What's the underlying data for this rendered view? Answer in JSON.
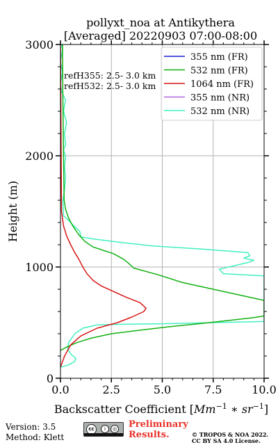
{
  "chart_data": {
    "type": "line",
    "title": [
      "pollyxt_noa at Antikythera",
      "[Averaged] 20220903 07:00-08:00"
    ],
    "xlabel": "Backscatter Coefficient [Mm⁻¹ * sr⁻¹]",
    "ylabel": "Height (m)",
    "xlim": [
      0,
      10
    ],
    "ylim": [
      0,
      3000
    ],
    "xticks": [
      0,
      2.5,
      5,
      7.5,
      10
    ],
    "xtick_labels": [
      "0.0",
      "2.5",
      "5.0",
      "7.5",
      "10.0"
    ],
    "yticks": [
      0,
      1000,
      2000,
      3000
    ],
    "ytick_labels": [
      "0",
      "1000",
      "2000",
      "3000"
    ],
    "grid": true,
    "legend_position": "top-right",
    "annotations": [
      "refH355:  2.5- 3.0 km",
      "refH532:  2.5- 3.0 km"
    ],
    "series": [
      {
        "name": "355 nm (FR)",
        "color": "#1a1ad8",
        "points": []
      },
      {
        "name": "532 nm (FR)",
        "color": "#12b012",
        "points": [
          [
            0.0,
            250
          ],
          [
            0.3,
            280
          ],
          [
            0.8,
            320
          ],
          [
            1.5,
            360
          ],
          [
            2.5,
            400
          ],
          [
            3.8,
            430
          ],
          [
            5.2,
            460
          ],
          [
            6.8,
            490
          ],
          [
            8.3,
            520
          ],
          [
            9.5,
            545
          ],
          [
            10.0,
            560
          ],
          [
            10.0,
            700
          ],
          [
            9.0,
            740
          ],
          [
            7.5,
            800
          ],
          [
            6.0,
            860
          ],
          [
            4.8,
            930
          ],
          [
            3.6,
            990
          ],
          [
            3.3,
            1040
          ],
          [
            3.1,
            1070
          ],
          [
            2.6,
            1120
          ],
          [
            2.1,
            1150
          ],
          [
            1.6,
            1180
          ],
          [
            1.2,
            1230
          ],
          [
            0.9,
            1290
          ],
          [
            0.6,
            1370
          ],
          [
            0.4,
            1440
          ],
          [
            0.25,
            1520
          ],
          [
            0.18,
            1600
          ],
          [
            0.15,
            2000
          ],
          [
            0.12,
            2500
          ],
          [
            0.1,
            3000
          ]
        ]
      },
      {
        "name": "1064 nm (FR)",
        "color": "#d81515",
        "points": [
          [
            0.0,
            100
          ],
          [
            0.2,
            200
          ],
          [
            0.5,
            300
          ],
          [
            1.0,
            380
          ],
          [
            1.8,
            450
          ],
          [
            2.8,
            500
          ],
          [
            3.5,
            550
          ],
          [
            4.1,
            600
          ],
          [
            4.2,
            630
          ],
          [
            3.9,
            680
          ],
          [
            3.2,
            730
          ],
          [
            2.6,
            780
          ],
          [
            2.0,
            830
          ],
          [
            1.6,
            880
          ],
          [
            1.3,
            940
          ],
          [
            1.1,
            1000
          ],
          [
            0.9,
            1070
          ],
          [
            0.7,
            1130
          ],
          [
            0.5,
            1200
          ],
          [
            0.3,
            1280
          ],
          [
            0.15,
            1370
          ],
          [
            0.05,
            1500
          ],
          [
            0.0,
            3000
          ]
        ]
      },
      {
        "name": "355 nm (NR)",
        "color": "#b066dd",
        "points": []
      },
      {
        "name": "532 nm (NR)",
        "color": "#40f0c0",
        "points": [
          [
            0.0,
            100
          ],
          [
            0.4,
            120
          ],
          [
            0.7,
            150
          ],
          [
            0.75,
            180
          ],
          [
            0.55,
            210
          ],
          [
            0.35,
            260
          ],
          [
            0.4,
            320
          ],
          [
            0.7,
            400
          ],
          [
            1.1,
            450
          ],
          [
            1.8,
            480
          ],
          [
            3.0,
            485
          ],
          [
            5.0,
            490
          ],
          [
            7.5,
            500
          ],
          [
            10.0,
            510
          ],
          [
            10.0,
            920
          ],
          [
            8.0,
            940
          ],
          [
            7.8,
            980
          ],
          [
            8.5,
            1010
          ],
          [
            9.2,
            1040
          ],
          [
            9.5,
            1060
          ],
          [
            9.0,
            1080
          ],
          [
            9.3,
            1100
          ],
          [
            9.2,
            1130
          ],
          [
            7.0,
            1160
          ],
          [
            4.5,
            1190
          ],
          [
            3.0,
            1220
          ],
          [
            1.7,
            1250
          ],
          [
            1.0,
            1270
          ],
          [
            0.95,
            1320
          ],
          [
            0.6,
            1380
          ],
          [
            0.4,
            1420
          ],
          [
            0.15,
            1460
          ],
          [
            0.12,
            1600
          ],
          [
            0.2,
            1700
          ],
          [
            0.25,
            1800
          ],
          [
            0.2,
            1900
          ],
          [
            0.25,
            2000
          ],
          [
            0.15,
            2050
          ],
          [
            0.25,
            2100
          ],
          [
            0.2,
            2200
          ],
          [
            0.3,
            2300
          ],
          [
            0.15,
            2400
          ],
          [
            0.25,
            2500
          ],
          [
            0.05,
            2580
          ],
          [
            0.0,
            2650
          ],
          [
            0.1,
            2750
          ],
          [
            0.0,
            2850
          ],
          [
            0.1,
            2950
          ],
          [
            0.05,
            3000
          ]
        ]
      }
    ]
  },
  "footer": {
    "version": "Version: 3.5",
    "method": "Method: Klett",
    "preliminary_line1": "Preliminary",
    "preliminary_line2": "Results.",
    "copyright_line1": "© TROPOS & NOA 2022.",
    "copyright_line2": "CC BY SA 4.0 License.",
    "license_icon": "cc-by-sa-icon"
  }
}
